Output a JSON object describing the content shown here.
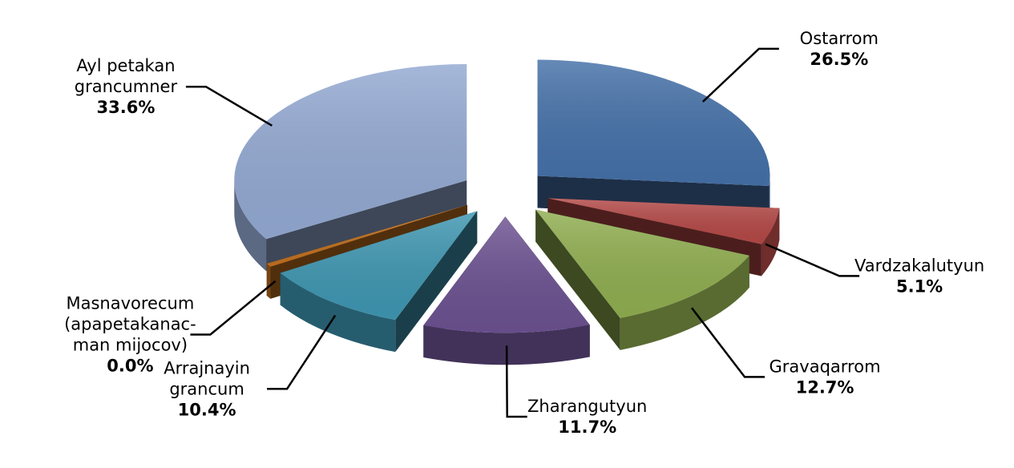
{
  "chart_data": {
    "type": "pie",
    "title": "",
    "style": "3d-exploded",
    "slices": [
      {
        "label": [
          "Ostarrom"
        ],
        "value": 26.5,
        "value_label": "26.5%",
        "color": "#4470a8"
      },
      {
        "label": [
          "Vardzakalutyun"
        ],
        "value": 5.1,
        "value_label": "5.1%",
        "color": "#b34846"
      },
      {
        "label": [
          "Gravaqarrom"
        ],
        "value": 12.7,
        "value_label": "12.7%",
        "color": "#8fad4f"
      },
      {
        "label": [
          "Zharangutyun"
        ],
        "value": 11.7,
        "value_label": "11.7%",
        "color": "#6b5190"
      },
      {
        "label": [
          "Arrajnayin",
          "grancum"
        ],
        "value": 10.4,
        "value_label": "10.4%",
        "color": "#3e96b1"
      },
      {
        "label": [
          "Masnavorecum",
          "(apapetakanac-",
          "man mijocov)"
        ],
        "value": 0.0,
        "value_label": "0.0%",
        "color": "#c0701f"
      },
      {
        "label": [
          "Ayl petakan",
          "grancumner"
        ],
        "value": 33.6,
        "value_label": "33.6%",
        "color": "#93a9d2"
      }
    ]
  }
}
